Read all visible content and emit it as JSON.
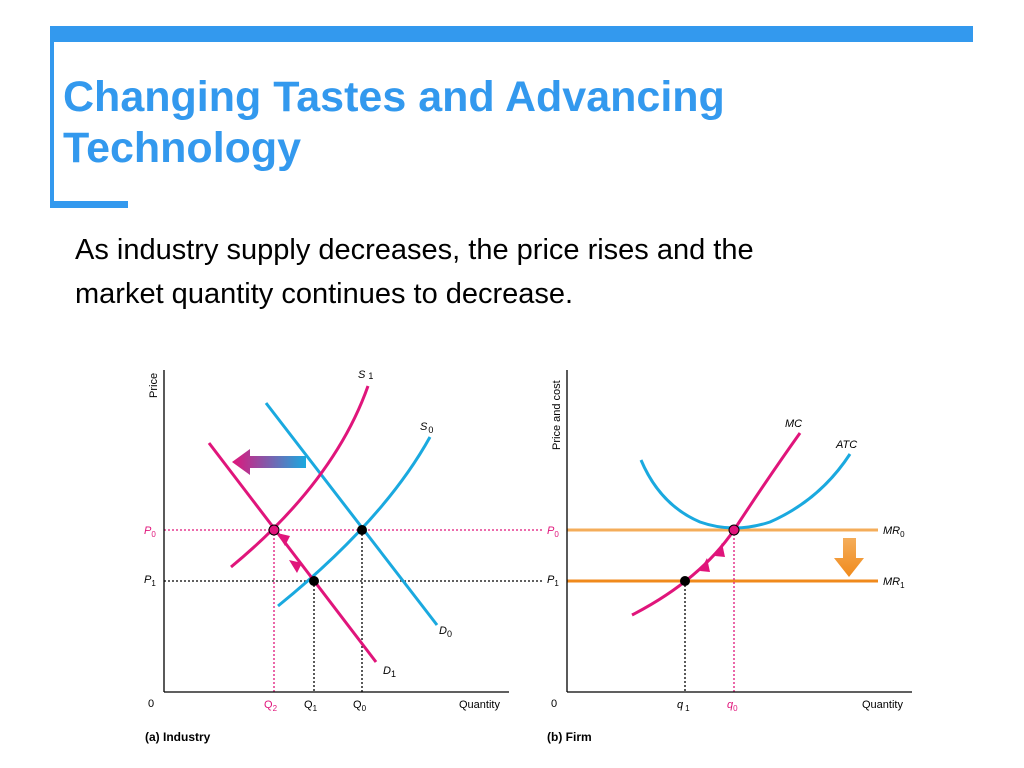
{
  "slide": {
    "title_line1": "Changing Tastes and Advancing",
    "title_line2": "Technology",
    "body_line1": "As industry supply decreases, the price rises and the",
    "body_line2": "market quantity continues to decrease."
  },
  "colors": {
    "accent": "#3399ee",
    "magenta": "#e0157b",
    "cyan": "#1aa9df",
    "orange": "#f08a1c",
    "light_orange": "#f4ad5a",
    "text": "#000000"
  },
  "industry": {
    "y_axis": "Price",
    "caption": "(a) Industry",
    "x_axis": "Quantity",
    "origin": "0",
    "S1": "S",
    "S1_sub": "1",
    "S0": "S",
    "S0_sub": "0",
    "D0": "D",
    "D0_sub": "0",
    "D1": "D",
    "D1_sub": "1",
    "P0": "P",
    "P0_sub": "0",
    "P1": "P",
    "P1_sub": "1",
    "Q2": "Q",
    "Q2_sub": "2",
    "Q1": "Q",
    "Q1_sub": "1",
    "Q0": "Q",
    "Q0_sub": "0"
  },
  "firm": {
    "y_axis": "Price and cost",
    "caption": "(b) Firm",
    "x_axis": "Quantity",
    "origin": "0",
    "MC": "MC",
    "ATC": "ATC",
    "MR0": "MR",
    "MR0_sub": "0",
    "MR1": "MR",
    "MR1_sub": "1",
    "P0": "P",
    "P0_sub": "0",
    "P1": "P",
    "P1_sub": "1",
    "q1": "q",
    "q1_sub": "1",
    "q0": "q",
    "q0_sub": "0"
  }
}
